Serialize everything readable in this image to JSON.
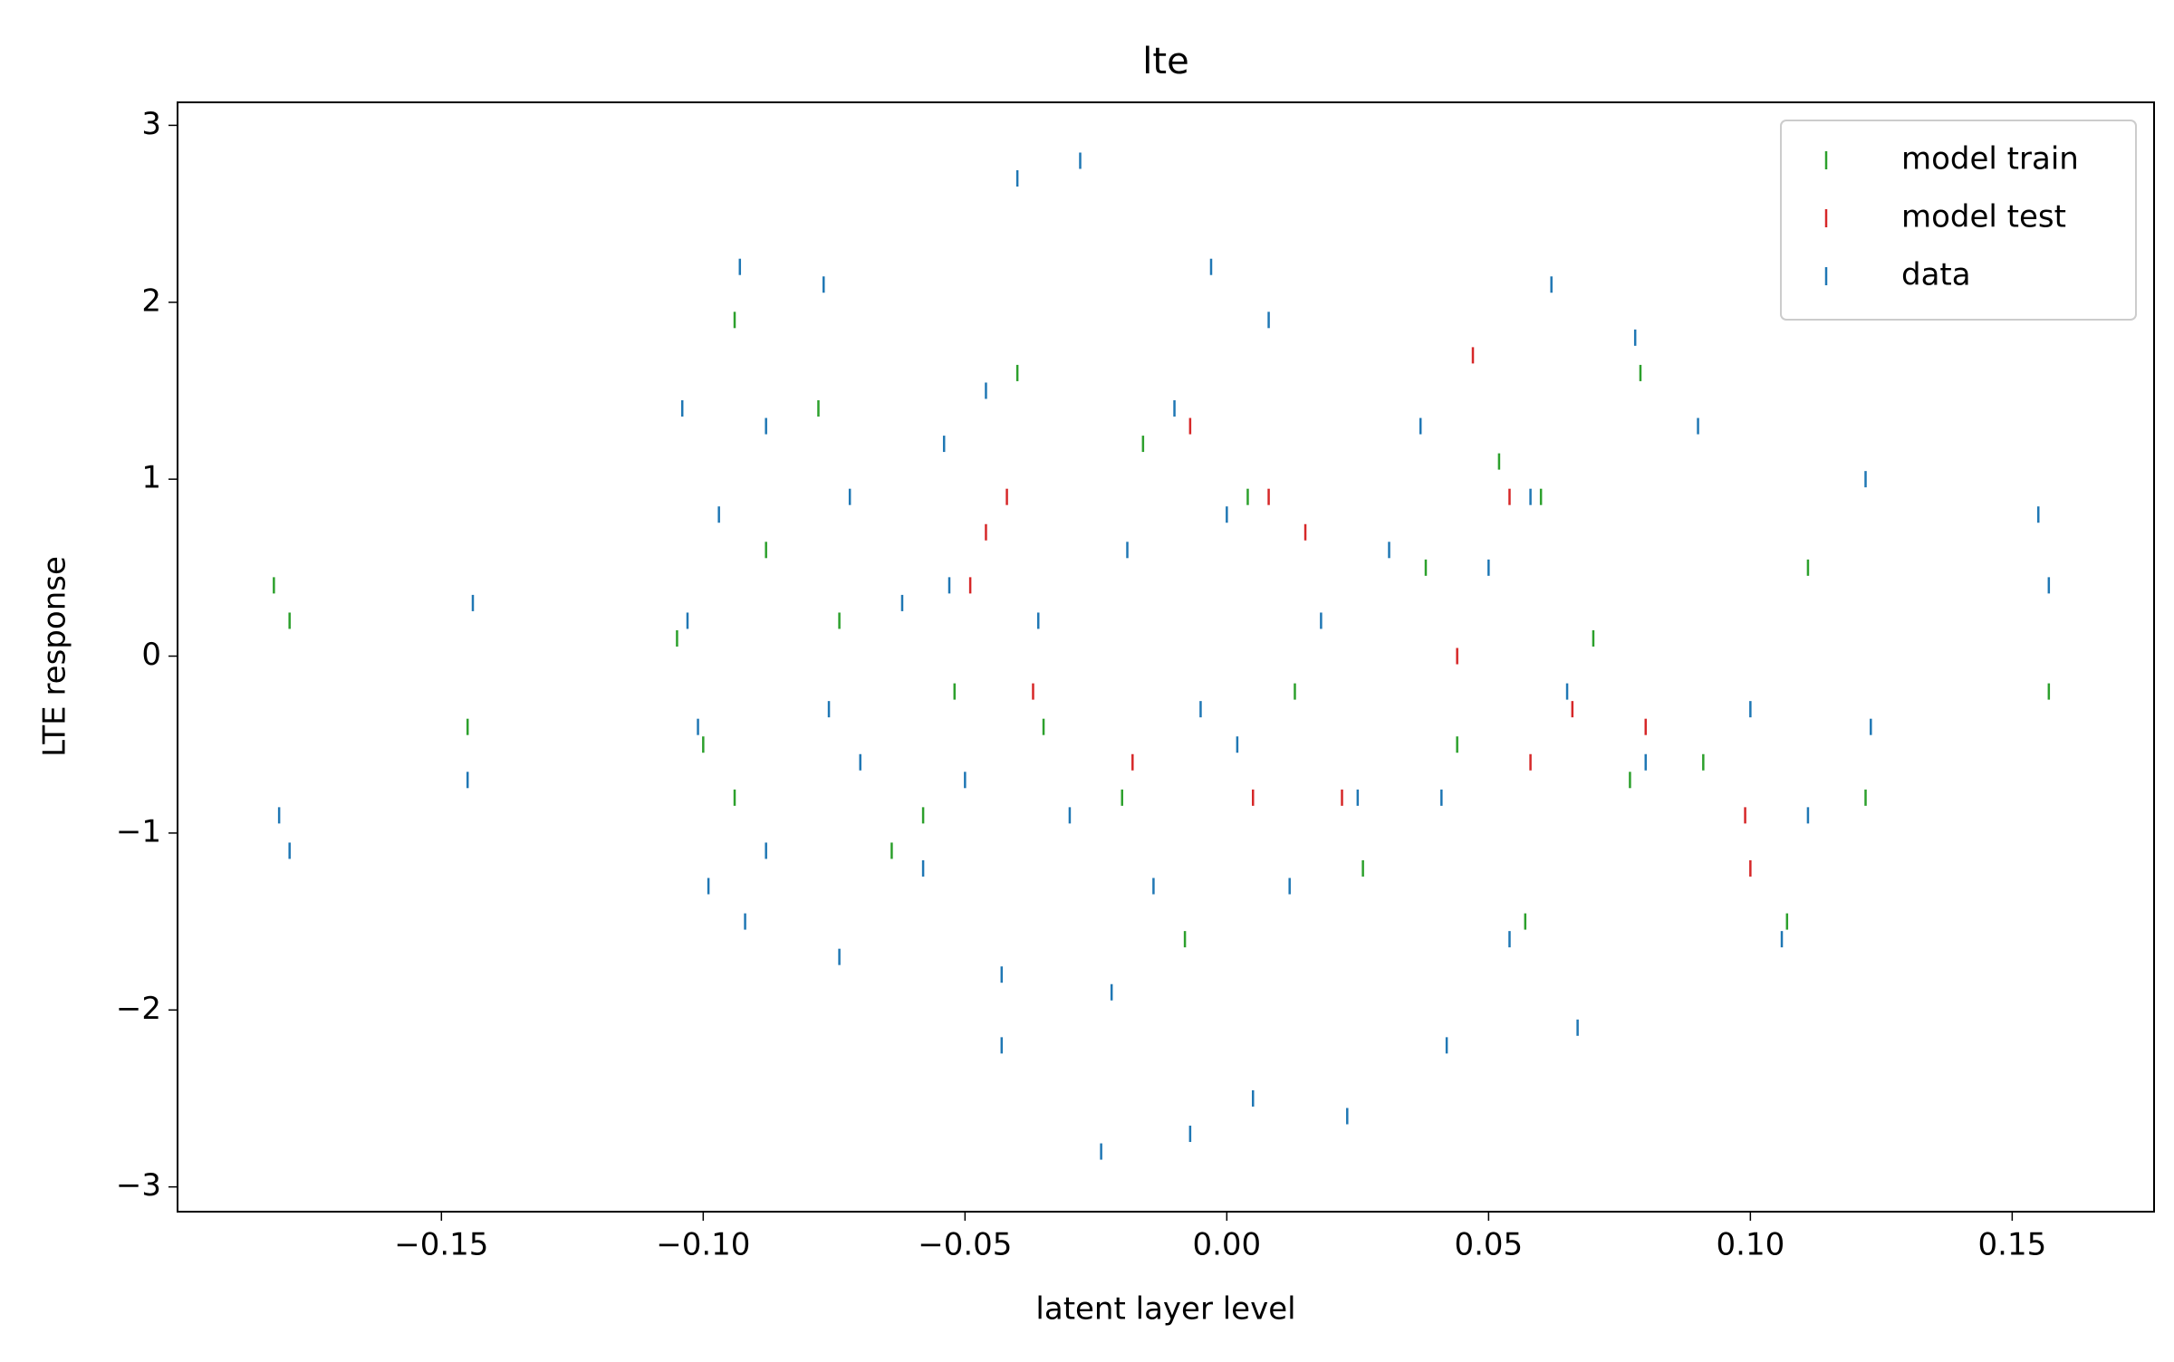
{
  "chart_data": {
    "type": "scatter",
    "title": "lte",
    "x_label": "latent layer level",
    "y_label": "LTE response",
    "xlim": [
      -0.2004,
      0.1771
    ],
    "ylim": [
      -3.14,
      3.13
    ],
    "xticks": [
      {
        "value": -0.15,
        "label": "−0.15"
      },
      {
        "value": -0.1,
        "label": "−0.10"
      },
      {
        "value": -0.05,
        "label": "−0.05"
      },
      {
        "value": 0,
        "label": "0.00"
      },
      {
        "value": 0.05,
        "label": "0.05"
      },
      {
        "value": 0.1,
        "label": "0.10"
      },
      {
        "value": 0.15,
        "label": "0.15"
      }
    ],
    "yticks": [
      {
        "value": -3,
        "label": "−3"
      },
      {
        "value": -2,
        "label": "−2"
      },
      {
        "value": -1,
        "label": "−1"
      },
      0,
      1,
      2,
      3
    ],
    "legend": "upper right",
    "marker": "|",
    "series": [
      {
        "name": "model train",
        "color": "#2ca02c",
        "x": [
          -0.182,
          -0.179,
          -0.145,
          -0.105,
          -0.1,
          -0.094,
          -0.094,
          -0.088,
          -0.078,
          -0.074,
          -0.064,
          -0.058,
          -0.052,
          -0.04,
          -0.035,
          -0.02,
          -0.016,
          -0.008,
          0.004,
          0.013,
          0.026,
          0.038,
          0.044,
          0.052,
          0.057,
          0.06,
          0.07,
          0.077,
          0.079,
          0.091,
          0.107,
          0.111,
          0.122,
          0.157
        ],
        "values": [
          0.4,
          0.2,
          -0.4,
          0.1,
          -0.5,
          1.9,
          -0.8,
          0.6,
          1.4,
          0.2,
          -1.1,
          -0.9,
          -0.2,
          1.6,
          -0.4,
          -0.8,
          1.2,
          -1.6,
          0.9,
          -0.2,
          -1.2,
          0.5,
          -0.5,
          1.1,
          -1.5,
          0.9,
          0.1,
          -0.7,
          1.6,
          -0.6,
          -1.5,
          0.5,
          -0.8,
          -0.2
        ]
      },
      {
        "name": "model test",
        "color": "#d62728",
        "x": [
          -0.049,
          -0.046,
          -0.042,
          -0.037,
          -0.018,
          -0.007,
          0.005,
          0.008,
          0.015,
          0.022,
          0.044,
          0.047,
          0.054,
          0.058,
          0.066,
          0.08,
          0.099,
          0.1
        ],
        "values": [
          0.4,
          0.7,
          0.9,
          -0.2,
          -0.6,
          1.3,
          -0.8,
          0.9,
          0.7,
          -0.8,
          0.0,
          1.7,
          0.9,
          -0.6,
          -0.3,
          -0.4,
          -0.9,
          -1.2
        ]
      },
      {
        "name": "data",
        "color": "#1f77b4",
        "x": [
          -0.181,
          -0.179,
          -0.145,
          -0.144,
          -0.104,
          -0.103,
          -0.101,
          -0.099,
          -0.097,
          -0.093,
          -0.092,
          -0.088,
          -0.088,
          -0.077,
          -0.076,
          -0.074,
          -0.072,
          -0.07,
          -0.062,
          -0.058,
          -0.054,
          -0.053,
          -0.05,
          -0.046,
          -0.043,
          -0.043,
          -0.04,
          -0.036,
          -0.03,
          -0.028,
          -0.024,
          -0.022,
          -0.019,
          -0.014,
          -0.01,
          -0.007,
          -0.005,
          -0.003,
          0,
          0.002,
          0.005,
          0.008,
          0.012,
          0.018,
          0.023,
          0.025,
          0.031,
          0.037,
          0.041,
          0.042,
          0.05,
          0.054,
          0.058,
          0.062,
          0.065,
          0.067,
          0.078,
          0.08,
          0.09,
          0.1,
          0.106,
          0.111,
          0.122,
          0.123,
          0.155,
          0.157
        ],
        "values": [
          -0.9,
          -1.1,
          -0.7,
          0.3,
          1.4,
          0.2,
          -0.4,
          -1.3,
          0.8,
          2.2,
          -1.5,
          1.3,
          -1.1,
          2.1,
          -0.3,
          -1.7,
          0.9,
          -0.6,
          0.3,
          -1.2,
          1.2,
          0.4,
          -0.7,
          1.5,
          -1.8,
          -2.2,
          2.7,
          0.2,
          -0.9,
          2.8,
          -2.8,
          -1.9,
          0.6,
          -1.3,
          1.4,
          -2.7,
          -0.3,
          2.2,
          0.8,
          -0.5,
          -2.5,
          1.9,
          -1.3,
          0.2,
          -2.6,
          -0.8,
          0.6,
          1.3,
          -0.8,
          -2.2,
          0.5,
          -1.6,
          0.9,
          2.1,
          -0.2,
          -2.1,
          1.8,
          -0.6,
          1.3,
          -0.3,
          -1.6,
          -0.9,
          1.0,
          -0.4,
          0.8,
          0.4
        ]
      }
    ]
  }
}
